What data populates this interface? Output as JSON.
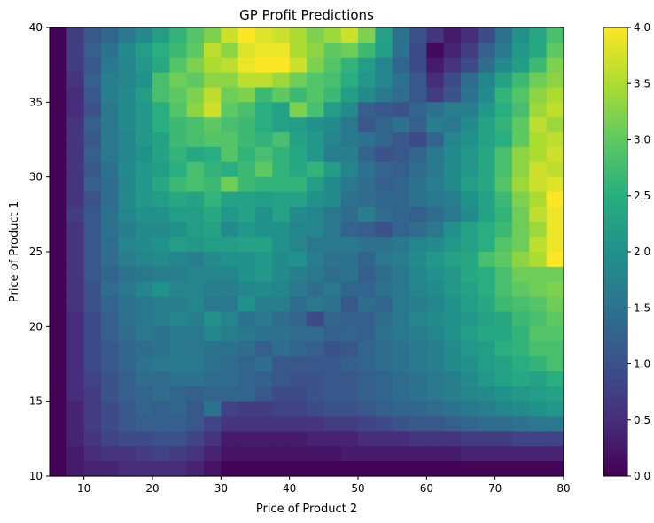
{
  "chart_data": {
    "type": "heatmap",
    "title": "GP Profit Predictions",
    "xlabel": "Price of Product 2",
    "ylabel": "Price of Product 1",
    "xlim": [
      5,
      80
    ],
    "ylim": [
      10,
      40
    ],
    "x_ticks": [
      10,
      20,
      30,
      40,
      50,
      60,
      70,
      80
    ],
    "y_ticks": [
      10,
      15,
      20,
      25,
      30,
      35,
      40
    ],
    "colorbar": {
      "min": 0.0,
      "max": 4.0,
      "ticks": [
        "0.0",
        "0.5",
        "1.0",
        "1.5",
        "2.0",
        "2.5",
        "3.0",
        "3.5",
        "4.0"
      ],
      "colormap": "viridis"
    },
    "x_edges": [
      5,
      80
    ],
    "x_cells": 30,
    "y_edges": [
      10,
      40
    ],
    "y_cells": 30,
    "rows_top_to_bottom": [
      [
        0.05,
        0.7,
        1.1,
        1.3,
        1.6,
        1.9,
        2.2,
        2.6,
        2.9,
        3.2,
        3.7,
        4.0,
        3.8,
        3.7,
        3.5,
        3.2,
        3.4,
        3.7,
        3.2,
        2.3,
        1.5,
        1.0,
        0.6,
        0.3,
        0.5,
        0.9,
        1.5,
        2.0,
        2.4,
        2.8
      ],
      [
        0.05,
        0.7,
        1.2,
        1.5,
        1.9,
        2.2,
        2.5,
        2.7,
        3.0,
        3.6,
        3.3,
        3.8,
        3.9,
        3.9,
        3.5,
        3.3,
        3.0,
        3.1,
        2.7,
        2.2,
        1.5,
        0.9,
        0.1,
        0.4,
        0.7,
        1.2,
        1.6,
        2.1,
        2.4,
        3.0
      ],
      [
        0.05,
        0.7,
        1.1,
        1.6,
        1.8,
        2.1,
        2.4,
        2.9,
        3.2,
        3.5,
        3.6,
        3.9,
        4.0,
        4.0,
        3.7,
        3.2,
        2.9,
        2.6,
        2.2,
        1.8,
        1.3,
        0.9,
        0.3,
        0.6,
        0.9,
        1.4,
        1.9,
        2.2,
        2.7,
        3.2
      ],
      [
        0.05,
        0.6,
        1.2,
        1.7,
        1.8,
        2.0,
        2.8,
        3.1,
        3.0,
        3.3,
        3.3,
        3.6,
        3.6,
        3.4,
        3.1,
        2.9,
        2.8,
        2.5,
        2.1,
        1.8,
        1.5,
        1.1,
        0.5,
        0.9,
        1.4,
        1.8,
        2.3,
        2.7,
        3.1,
        3.3
      ],
      [
        0.05,
        0.5,
        1.1,
        1.7,
        1.9,
        2.2,
        2.8,
        3.0,
        3.2,
        3.6,
        3.1,
        3.2,
        2.7,
        3.0,
        2.7,
        2.9,
        2.7,
        2.2,
        1.9,
        1.6,
        1.4,
        1.1,
        0.7,
        1.0,
        1.5,
        1.9,
        2.6,
        2.9,
        3.3,
        3.5
      ],
      [
        0.05,
        0.5,
        1.0,
        1.6,
        1.9,
        2.1,
        2.5,
        2.9,
        3.3,
        3.7,
        3.0,
        2.8,
        2.5,
        2.3,
        3.2,
        2.8,
        2.2,
        1.9,
        1.2,
        1.1,
        1.0,
        1.3,
        1.5,
        1.7,
        1.7,
        2.1,
        2.5,
        2.8,
        3.4,
        3.6
      ],
      [
        0.05,
        0.6,
        1.2,
        1.6,
        1.9,
        2.1,
        2.5,
        2.7,
        2.8,
        3.0,
        2.8,
        2.7,
        2.5,
        2.3,
        2.2,
        2.0,
        1.9,
        1.6,
        1.1,
        1.3,
        1.5,
        1.2,
        1.7,
        1.6,
        1.9,
        2.3,
        2.6,
        3.0,
        3.6,
        3.4
      ],
      [
        0.05,
        0.6,
        1.1,
        1.6,
        1.8,
        2.1,
        2.3,
        2.7,
        2.8,
        2.9,
        2.9,
        2.7,
        2.6,
        2.8,
        2.3,
        2.1,
        1.8,
        1.6,
        1.5,
        1.3,
        1.1,
        0.9,
        1.3,
        1.8,
        2.0,
        2.3,
        2.5,
        3.0,
        3.5,
        3.6
      ],
      [
        0.05,
        0.6,
        1.2,
        1.6,
        1.8,
        2.0,
        2.3,
        2.6,
        2.4,
        2.5,
        2.9,
        2.6,
        2.8,
        2.6,
        2.4,
        2.1,
        1.7,
        1.7,
        1.3,
        1.0,
        1.1,
        1.3,
        1.6,
        1.9,
        2.1,
        2.4,
        2.8,
        3.3,
        3.5,
        3.7
      ],
      [
        0.05,
        0.6,
        1.1,
        1.5,
        1.9,
        2.1,
        2.2,
        2.5,
        2.8,
        2.6,
        2.5,
        2.7,
        3.0,
        2.6,
        2.4,
        2.6,
        2.2,
        1.8,
        1.5,
        1.3,
        1.2,
        1.4,
        1.6,
        1.9,
        2.1,
        2.4,
        2.8,
        3.3,
        3.7,
        3.6
      ],
      [
        0.05,
        0.6,
        1.2,
        1.4,
        1.8,
        2.1,
        2.4,
        2.7,
        2.8,
        2.7,
        3.1,
        2.7,
        2.6,
        2.6,
        2.6,
        2.2,
        1.9,
        1.6,
        1.4,
        1.2,
        1.3,
        1.5,
        1.7,
        1.9,
        2.2,
        2.4,
        2.9,
        3.4,
        3.7,
        3.8
      ],
      [
        0.05,
        0.6,
        1.0,
        1.4,
        1.9,
        2.1,
        2.2,
        2.4,
        2.3,
        2.6,
        2.3,
        2.3,
        2.2,
        2.3,
        2.3,
        2.0,
        1.9,
        1.5,
        1.4,
        1.3,
        1.3,
        1.5,
        1.6,
        1.7,
        2.0,
        2.3,
        2.7,
        3.2,
        3.5,
        4.0
      ],
      [
        0.05,
        0.7,
        1.1,
        1.5,
        1.8,
        2.0,
        2.0,
        2.2,
        2.2,
        2.4,
        2.1,
        2.3,
        2.0,
        2.3,
        1.9,
        1.8,
        1.6,
        1.4,
        1.7,
        1.4,
        1.3,
        1.2,
        1.4,
        1.6,
        1.9,
        2.3,
        2.6,
        3.1,
        3.6,
        3.9
      ],
      [
        0.05,
        0.6,
        1.1,
        1.5,
        1.7,
        1.9,
        1.9,
        2.0,
        2.2,
        2.3,
        1.9,
        2.1,
        2.0,
        2.0,
        1.8,
        1.8,
        1.6,
        1.3,
        1.2,
        1.0,
        1.3,
        1.4,
        1.6,
        2.0,
        2.3,
        2.5,
        2.7,
        3.1,
        3.4,
        3.9
      ],
      [
        0.05,
        0.6,
        1.1,
        1.4,
        1.8,
        1.9,
        2.0,
        2.2,
        2.1,
        2.2,
        2.2,
        2.3,
        2.3,
        2.0,
        1.8,
        1.6,
        1.6,
        1.6,
        1.5,
        1.5,
        1.6,
        1.8,
        1.9,
        2.1,
        2.3,
        2.5,
        2.9,
        3.1,
        3.6,
        3.9
      ],
      [
        0.05,
        0.6,
        1.1,
        1.4,
        1.7,
        1.8,
        1.9,
        1.8,
        1.7,
        1.9,
        2.0,
        2.0,
        2.1,
        1.9,
        2.0,
        1.7,
        1.5,
        1.5,
        1.3,
        1.6,
        1.7,
        1.9,
        2.1,
        2.3,
        2.4,
        2.8,
        3.0,
        3.3,
        3.5,
        4.0
      ],
      [
        0.05,
        0.6,
        1.1,
        1.3,
        1.5,
        1.6,
        1.7,
        1.7,
        1.8,
        1.8,
        1.8,
        2.0,
        2.1,
        1.9,
        1.7,
        1.6,
        1.4,
        1.5,
        1.2,
        1.4,
        1.6,
        1.8,
        2.0,
        2.1,
        2.4,
        2.5,
        2.8,
        3.1,
        3.1,
        3.1
      ],
      [
        0.05,
        0.6,
        1.0,
        1.4,
        1.6,
        1.8,
        2.0,
        1.8,
        1.8,
        1.7,
        1.7,
        1.8,
        1.9,
        1.8,
        1.6,
        1.4,
        1.6,
        1.3,
        1.3,
        1.5,
        1.6,
        1.8,
        1.9,
        2.1,
        2.3,
        2.5,
        2.8,
        3.0,
        3.1,
        3.2
      ],
      [
        0.05,
        0.6,
        1.0,
        1.3,
        1.5,
        1.6,
        1.7,
        1.7,
        1.8,
        1.6,
        1.6,
        2.0,
        1.7,
        1.7,
        1.4,
        1.6,
        1.5,
        1.1,
        1.4,
        1.3,
        1.6,
        1.7,
        1.8,
        2.0,
        2.2,
        2.4,
        2.7,
        2.8,
        2.9,
        3.1
      ],
      [
        0.05,
        0.5,
        0.9,
        1.2,
        1.5,
        1.6,
        1.7,
        1.8,
        1.7,
        2.0,
        1.8,
        1.5,
        1.6,
        1.4,
        1.3,
        0.9,
        1.3,
        1.2,
        1.2,
        1.4,
        1.6,
        1.8,
        1.9,
        2.0,
        2.1,
        2.3,
        2.4,
        2.7,
        2.8,
        3.0
      ],
      [
        0.05,
        0.5,
        0.9,
        1.2,
        1.4,
        1.6,
        1.5,
        1.6,
        1.6,
        1.8,
        1.7,
        1.6,
        1.5,
        1.5,
        1.4,
        1.4,
        1.2,
        1.3,
        1.2,
        1.5,
        1.6,
        1.7,
        1.8,
        2.0,
        2.2,
        2.4,
        2.4,
        2.6,
        2.9,
        2.9
      ],
      [
        0.05,
        0.5,
        0.9,
        1.1,
        1.3,
        1.4,
        1.5,
        1.6,
        1.6,
        1.5,
        1.5,
        1.4,
        1.2,
        1.4,
        1.3,
        1.2,
        1.0,
        1.1,
        1.3,
        1.4,
        1.5,
        1.6,
        1.7,
        1.9,
        2.1,
        2.2,
        2.5,
        2.6,
        2.8,
        2.8
      ],
      [
        0.05,
        0.5,
        0.9,
        1.1,
        1.3,
        1.5,
        1.6,
        1.6,
        1.6,
        1.5,
        1.4,
        1.3,
        1.4,
        1.1,
        1.1,
        1.1,
        1.1,
        1.2,
        1.3,
        1.4,
        1.5,
        1.6,
        1.7,
        1.9,
        2.0,
        2.2,
        2.3,
        2.5,
        2.6,
        2.8
      ],
      [
        0.05,
        0.5,
        0.8,
        1.0,
        1.2,
        1.4,
        1.4,
        1.5,
        1.5,
        1.4,
        1.4,
        1.3,
        1.2,
        1.1,
        1.0,
        1.0,
        1.1,
        1.1,
        1.2,
        1.3,
        1.4,
        1.5,
        1.6,
        1.7,
        1.9,
        2.1,
        2.3,
        2.4,
        2.3,
        2.5
      ],
      [
        0.05,
        0.5,
        0.7,
        1.0,
        1.2,
        1.3,
        1.4,
        1.3,
        1.2,
        1.3,
        1.3,
        1.3,
        1.1,
        0.9,
        0.9,
        1.0,
        1.1,
        1.1,
        1.2,
        1.3,
        1.4,
        1.5,
        1.6,
        1.7,
        1.8,
        1.9,
        2.0,
        2.1,
        2.2,
        2.3
      ],
      [
        0.05,
        0.4,
        0.7,
        0.9,
        1.1,
        1.3,
        1.2,
        1.3,
        1.1,
        1.5,
        0.8,
        0.7,
        0.7,
        0.8,
        0.8,
        0.9,
        1.0,
        1.0,
        1.1,
        1.2,
        1.3,
        1.3,
        1.4,
        1.5,
        1.6,
        1.7,
        1.8,
        1.9,
        2.0,
        2.1
      ],
      [
        0.05,
        0.4,
        0.7,
        0.9,
        1.1,
        1.2,
        1.2,
        1.2,
        1.1,
        0.8,
        0.6,
        0.6,
        0.6,
        0.6,
        0.6,
        0.6,
        0.7,
        0.7,
        0.8,
        0.9,
        1.0,
        1.1,
        1.1,
        1.2,
        1.3,
        1.4,
        1.4,
        1.5,
        1.6,
        1.6
      ],
      [
        0.05,
        0.4,
        0.6,
        0.8,
        0.9,
        0.9,
        1.0,
        1.0,
        0.8,
        0.6,
        0.3,
        0.3,
        0.3,
        0.3,
        0.3,
        0.4,
        0.4,
        0.4,
        0.5,
        0.5,
        0.5,
        0.6,
        0.6,
        0.6,
        0.7,
        0.7,
        0.7,
        0.8,
        0.8,
        0.8
      ],
      [
        0.05,
        0.3,
        0.5,
        0.6,
        0.6,
        0.7,
        0.8,
        0.7,
        0.6,
        0.4,
        0.2,
        0.2,
        0.2,
        0.2,
        0.2,
        0.2,
        0.2,
        0.3,
        0.3,
        0.3,
        0.3,
        0.3,
        0.3,
        0.3,
        0.4,
        0.4,
        0.4,
        0.4,
        0.4,
        0.4
      ],
      [
        0.05,
        0.3,
        0.4,
        0.4,
        0.5,
        0.5,
        0.5,
        0.5,
        0.4,
        0.2,
        0.05,
        0.05,
        0.05,
        0.05,
        0.05,
        0.05,
        0.05,
        0.05,
        0.05,
        0.05,
        0.05,
        0.05,
        0.05,
        0.05,
        0.05,
        0.05,
        0.05,
        0.05,
        0.05,
        0.05
      ]
    ]
  }
}
